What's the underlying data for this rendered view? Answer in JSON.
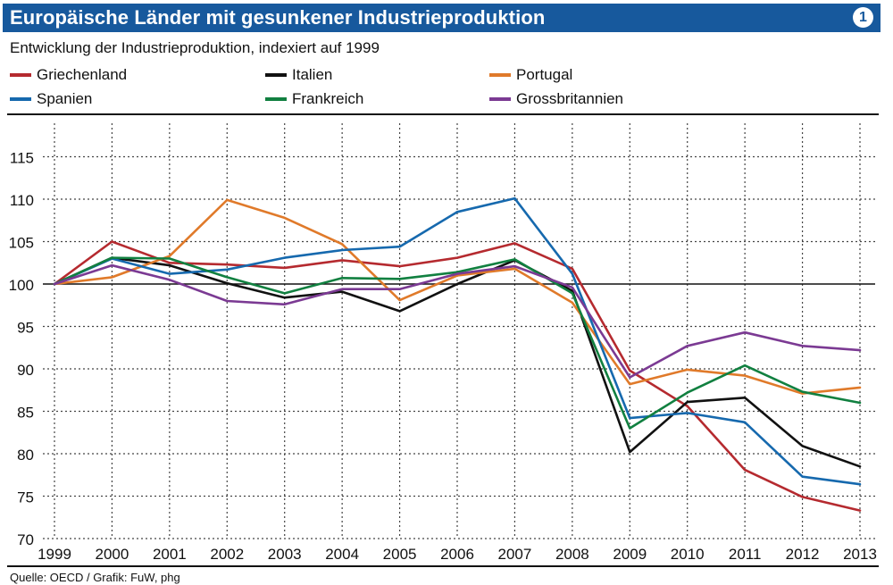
{
  "header": {
    "title": "Europäische Länder mit gesunkener Industrieproduktion",
    "badge": "1"
  },
  "subtitle": "Entwicklung der Industrieproduktion, indexiert auf 1999",
  "source": "Quelle: OECD / Grafik: FuW, phg",
  "chart_data": {
    "type": "line",
    "title": "Europäische Länder mit gesunkener Industrieproduktion",
    "subtitle": "Entwicklung der Industrieproduktion, indexiert auf 1999",
    "x": [
      "1999",
      "2000",
      "2001",
      "2002",
      "2003",
      "2004",
      "2005",
      "2006",
      "2007",
      "2008",
      "2009",
      "2010",
      "2011",
      "2012",
      "2013"
    ],
    "ylim": [
      70,
      120
    ],
    "yticks": [
      70,
      75,
      80,
      85,
      90,
      95,
      100,
      105,
      110,
      115
    ],
    "grid": true,
    "legend_position": "top",
    "series": [
      {
        "name": "Griechenland",
        "color": "#b52a2f",
        "values": [
          100,
          105,
          102.5,
          102.3,
          101.9,
          102.8,
          102.1,
          103.1,
          104.8,
          101.8,
          89.8,
          85.6,
          78.1,
          74.9,
          73.3
        ]
      },
      {
        "name": "Italien",
        "color": "#111111",
        "values": [
          100,
          103.1,
          102.2,
          100.1,
          98.4,
          99.1,
          96.8,
          100.0,
          102.8,
          99.2,
          80.2,
          86.1,
          86.6,
          80.9,
          78.5
        ]
      },
      {
        "name": "Portugal",
        "color": "#e07a2a",
        "values": [
          100,
          100.8,
          103.3,
          109.9,
          107.8,
          104.7,
          98.1,
          101.0,
          101.8,
          97.8,
          88.2,
          89.9,
          89.2,
          87.1,
          87.8
        ]
      },
      {
        "name": "Spanien",
        "color": "#1669ae",
        "values": [
          100,
          103.0,
          101.2,
          101.7,
          103.1,
          104.0,
          104.4,
          108.5,
          110.1,
          101.2,
          84.2,
          84.8,
          83.7,
          77.3,
          76.4
        ]
      },
      {
        "name": "Frankreich",
        "color": "#118040",
        "values": [
          100,
          103.1,
          103.0,
          100.8,
          98.9,
          100.7,
          100.6,
          101.4,
          102.9,
          98.9,
          83.0,
          87.2,
          90.4,
          87.3,
          86.0
        ]
      },
      {
        "name": "Grossbritannien",
        "color": "#7b3a93",
        "values": [
          100,
          102.2,
          100.5,
          98.0,
          97.6,
          99.4,
          99.4,
          101.2,
          102.1,
          99.6,
          89.0,
          92.7,
          94.3,
          92.7,
          92.2
        ]
      }
    ]
  }
}
